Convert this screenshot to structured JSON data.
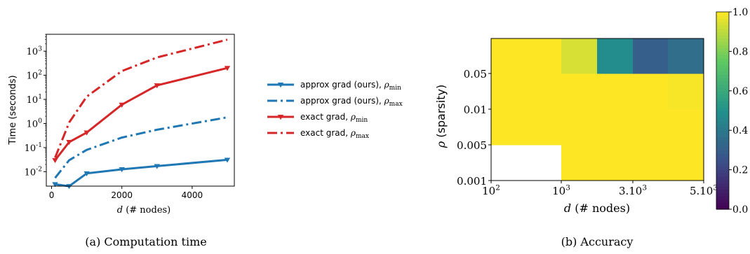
{
  "chart_data": [
    {
      "type": "line",
      "caption": "(a) Computation time",
      "xlabel": "d (# nodes)",
      "ylabel": "Time (seconds)",
      "xlim": [
        -150,
        5200
      ],
      "ylim_log10": [
        -2.6,
        3.7
      ],
      "yscale": "log",
      "xticks": [
        0,
        2000,
        4000
      ],
      "yticks": [
        {
          "exp": -2,
          "label": "10",
          "sup": "-2"
        },
        {
          "exp": -1,
          "label": "10",
          "sup": "-1"
        },
        {
          "exp": 0,
          "label": "10",
          "sup": "0"
        },
        {
          "exp": 1,
          "label": "10",
          "sup": "1"
        },
        {
          "exp": 2,
          "label": "10",
          "sup": "2"
        },
        {
          "exp": 3,
          "label": "10",
          "sup": "3"
        }
      ],
      "series": [
        {
          "name": "approx grad (ours), ρmin",
          "label_text": "approx grad (ours), ",
          "label_sub": "min",
          "color": "#1f77b4",
          "style": "solid",
          "marker": true,
          "x": [
            100,
            500,
            1000,
            2000,
            3000,
            5000
          ],
          "y": [
            0.003,
            0.0025,
            0.0085,
            0.0125,
            0.017,
            0.031
          ]
        },
        {
          "name": "approx grad (ours), ρmax",
          "label_text": "approx grad (ours), ",
          "label_sub": "max",
          "color": "#1f77b4",
          "style": "dashdot",
          "marker": false,
          "x": [
            100,
            500,
            1000,
            2000,
            3000,
            5000
          ],
          "y": [
            0.0055,
            0.03,
            0.08,
            0.26,
            0.55,
            1.8
          ]
        },
        {
          "name": "exact grad, ρmin",
          "label_text": "exact grad, ",
          "label_sub": "min",
          "color": "#d62728",
          "style": "solid",
          "marker": true,
          "x": [
            100,
            500,
            1000,
            2000,
            3000,
            5000
          ],
          "y": [
            0.03,
            0.17,
            0.42,
            6.0,
            38,
            200
          ]
        },
        {
          "name": "exact grad, ρmax",
          "label_text": "exact grad, ",
          "label_sub": "max",
          "color": "#d62728",
          "style": "dashdot",
          "marker": false,
          "x": [
            100,
            500,
            1000,
            2000,
            3000,
            5000
          ],
          "y": [
            0.038,
            1.1,
            13,
            150,
            550,
            3000
          ]
        }
      ],
      "legend": "right"
    },
    {
      "type": "heatmap",
      "caption": "(b) Accuracy",
      "xlabel": "d (# nodes)",
      "ylabel": "ρ (sparsity)",
      "xticks": [
        {
          "label": "10",
          "sup": "2"
        },
        {
          "label": "10",
          "sup": "3"
        },
        {
          "label": "3.10",
          "sup": "3"
        },
        {
          "label": "5.10",
          "sup": "3"
        }
      ],
      "yticks": [
        "0.001",
        "0.005",
        "0.01",
        "0.05"
      ],
      "x_bounds": [
        100,
        1000,
        2000,
        3000,
        4000,
        5000
      ],
      "y_bounds": [
        0.001,
        0.005,
        0.01,
        0.05,
        0.1
      ],
      "values": [
        [
          null,
          1.0,
          1.0,
          1.0,
          1.0
        ],
        [
          1.0,
          1.0,
          1.0,
          1.0,
          1.0
        ],
        [
          1.0,
          1.0,
          1.0,
          1.0,
          0.99
        ],
        [
          1.0,
          0.94,
          0.48,
          0.3,
          0.36
        ]
      ],
      "colorbar": {
        "min": 0.0,
        "max": 1.0,
        "ticks": [
          "0.0",
          "0.2",
          "0.4",
          "0.6",
          "0.8",
          "1.0"
        ],
        "colormap": "viridis"
      }
    }
  ]
}
